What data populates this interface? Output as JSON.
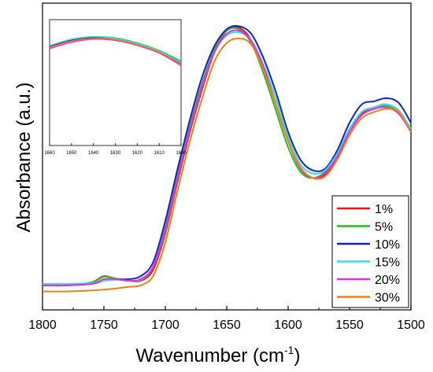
{
  "chart_data": [
    {
      "type": "line",
      "xlabel": "Wavenumber (cm",
      "xlabel_sup": "-1",
      "xlabel_close": ")",
      "ylabel": "Absorbance (a.u.)",
      "xlim": [
        1800,
        1500
      ],
      "ylim": [
        0,
        1
      ],
      "x_ticks": [
        "1800",
        "1750",
        "1700",
        "1650",
        "1600",
        "1550",
        "1500"
      ],
      "y_ticks_labeled": false,
      "grid": false,
      "legend_position": "bottom-right",
      "series": [
        {
          "name": "1%",
          "color": "#e8141b",
          "points": [
            [
              1800,
              0.08
            ],
            [
              1780,
              0.08
            ],
            [
              1760,
              0.09
            ],
            [
              1750,
              0.11
            ],
            [
              1740,
              0.1
            ],
            [
              1730,
              0.095
            ],
            [
              1720,
              0.095
            ],
            [
              1710,
              0.13
            ],
            [
              1700,
              0.25
            ],
            [
              1690,
              0.42
            ],
            [
              1680,
              0.58
            ],
            [
              1670,
              0.72
            ],
            [
              1660,
              0.84
            ],
            [
              1650,
              0.91
            ],
            [
              1640,
              0.92
            ],
            [
              1630,
              0.88
            ],
            [
              1620,
              0.79
            ],
            [
              1610,
              0.67
            ],
            [
              1600,
              0.55
            ],
            [
              1590,
              0.46
            ],
            [
              1580,
              0.43
            ],
            [
              1570,
              0.44
            ],
            [
              1560,
              0.5
            ],
            [
              1550,
              0.58
            ],
            [
              1540,
              0.64
            ],
            [
              1530,
              0.66
            ],
            [
              1520,
              0.67
            ],
            [
              1510,
              0.65
            ],
            [
              1500,
              0.59
            ]
          ]
        },
        {
          "name": "5%",
          "color": "#22c11c",
          "points": [
            [
              1800,
              0.08
            ],
            [
              1780,
              0.08
            ],
            [
              1760,
              0.09
            ],
            [
              1750,
              0.108
            ],
            [
              1740,
              0.102
            ],
            [
              1730,
              0.095
            ],
            [
              1720,
              0.098
            ],
            [
              1710,
              0.14
            ],
            [
              1700,
              0.27
            ],
            [
              1690,
              0.44
            ],
            [
              1680,
              0.6
            ],
            [
              1670,
              0.74
            ],
            [
              1660,
              0.85
            ],
            [
              1650,
              0.91
            ],
            [
              1640,
              0.915
            ],
            [
              1630,
              0.87
            ],
            [
              1620,
              0.77
            ],
            [
              1610,
              0.65
            ],
            [
              1600,
              0.53
            ],
            [
              1590,
              0.45
            ],
            [
              1580,
              0.43
            ],
            [
              1570,
              0.45
            ],
            [
              1560,
              0.51
            ],
            [
              1550,
              0.59
            ],
            [
              1540,
              0.645
            ],
            [
              1530,
              0.66
            ],
            [
              1520,
              0.665
            ],
            [
              1510,
              0.645
            ],
            [
              1500,
              0.58
            ]
          ]
        },
        {
          "name": "10%",
          "color": "#1423c8",
          "points": [
            [
              1800,
              0.08
            ],
            [
              1780,
              0.08
            ],
            [
              1760,
              0.085
            ],
            [
              1750,
              0.095
            ],
            [
              1740,
              0.1
            ],
            [
              1730,
              0.1
            ],
            [
              1720,
              0.11
            ],
            [
              1710,
              0.155
            ],
            [
              1700,
              0.29
            ],
            [
              1690,
              0.46
            ],
            [
              1680,
              0.62
            ],
            [
              1670,
              0.76
            ],
            [
              1660,
              0.86
            ],
            [
              1650,
              0.915
            ],
            [
              1640,
              0.925
            ],
            [
              1630,
              0.9
            ],
            [
              1620,
              0.82
            ],
            [
              1610,
              0.71
            ],
            [
              1600,
              0.58
            ],
            [
              1590,
              0.49
            ],
            [
              1580,
              0.455
            ],
            [
              1570,
              0.46
            ],
            [
              1560,
              0.52
            ],
            [
              1550,
              0.61
            ],
            [
              1540,
              0.67
            ],
            [
              1530,
              0.68
            ],
            [
              1520,
              0.69
            ],
            [
              1510,
              0.675
            ],
            [
              1500,
              0.61
            ]
          ]
        },
        {
          "name": "15%",
          "color": "#3bdce8",
          "points": [
            [
              1800,
              0.085
            ],
            [
              1780,
              0.085
            ],
            [
              1760,
              0.088
            ],
            [
              1750,
              0.095
            ],
            [
              1740,
              0.098
            ],
            [
              1730,
              0.095
            ],
            [
              1720,
              0.098
            ],
            [
              1710,
              0.14
            ],
            [
              1700,
              0.26
            ],
            [
              1690,
              0.43
            ],
            [
              1680,
              0.59
            ],
            [
              1670,
              0.73
            ],
            [
              1660,
              0.84
            ],
            [
              1650,
              0.895
            ],
            [
              1640,
              0.905
            ],
            [
              1630,
              0.88
            ],
            [
              1620,
              0.8
            ],
            [
              1610,
              0.69
            ],
            [
              1600,
              0.565
            ],
            [
              1590,
              0.475
            ],
            [
              1580,
              0.445
            ],
            [
              1570,
              0.455
            ],
            [
              1560,
              0.51
            ],
            [
              1550,
              0.59
            ],
            [
              1540,
              0.645
            ],
            [
              1530,
              0.66
            ],
            [
              1520,
              0.67
            ],
            [
              1510,
              0.65
            ],
            [
              1500,
              0.59
            ]
          ]
        },
        {
          "name": "20%",
          "color": "#e42ee0",
          "points": [
            [
              1800,
              0.08
            ],
            [
              1780,
              0.08
            ],
            [
              1760,
              0.085
            ],
            [
              1750,
              0.1
            ],
            [
              1740,
              0.1
            ],
            [
              1730,
              0.095
            ],
            [
              1720,
              0.1
            ],
            [
              1710,
              0.14
            ],
            [
              1700,
              0.26
            ],
            [
              1690,
              0.43
            ],
            [
              1680,
              0.59
            ],
            [
              1670,
              0.73
            ],
            [
              1660,
              0.84
            ],
            [
              1650,
              0.9
            ],
            [
              1640,
              0.91
            ],
            [
              1630,
              0.875
            ],
            [
              1620,
              0.79
            ],
            [
              1610,
              0.67
            ],
            [
              1600,
              0.55
            ],
            [
              1590,
              0.46
            ],
            [
              1580,
              0.43
            ],
            [
              1570,
              0.445
            ],
            [
              1560,
              0.5
            ],
            [
              1550,
              0.58
            ],
            [
              1540,
              0.635
            ],
            [
              1530,
              0.655
            ],
            [
              1520,
              0.66
            ],
            [
              1510,
              0.64
            ],
            [
              1500,
              0.58
            ]
          ]
        },
        {
          "name": "30%",
          "color": "#f07f13",
          "points": [
            [
              1800,
              0.06
            ],
            [
              1780,
              0.06
            ],
            [
              1760,
              0.063
            ],
            [
              1750,
              0.066
            ],
            [
              1740,
              0.07
            ],
            [
              1730,
              0.075
            ],
            [
              1720,
              0.08
            ],
            [
              1710,
              0.11
            ],
            [
              1700,
              0.22
            ],
            [
              1690,
              0.39
            ],
            [
              1680,
              0.55
            ],
            [
              1670,
              0.69
            ],
            [
              1660,
              0.81
            ],
            [
              1650,
              0.87
            ],
            [
              1640,
              0.885
            ],
            [
              1630,
              0.865
            ],
            [
              1620,
              0.78
            ],
            [
              1610,
              0.67
            ],
            [
              1600,
              0.55
            ],
            [
              1590,
              0.465
            ],
            [
              1580,
              0.43
            ],
            [
              1570,
              0.435
            ],
            [
              1560,
              0.49
            ],
            [
              1550,
              0.57
            ],
            [
              1540,
              0.625
            ],
            [
              1530,
              0.645
            ],
            [
              1520,
              0.655
            ],
            [
              1510,
              0.645
            ],
            [
              1500,
              0.58
            ]
          ]
        }
      ]
    },
    {
      "type": "line",
      "role": "inset",
      "xlim": [
        1660,
        1600
      ],
      "ylim": [
        0,
        1
      ],
      "x_ticks": [
        "1660",
        "1650",
        "1640",
        "1630",
        "1620",
        "1610",
        "1600"
      ],
      "series": [
        {
          "name": "1%",
          "color": "#e8141b",
          "points": [
            [
              1660,
              0.78
            ],
            [
              1650,
              0.83
            ],
            [
              1640,
              0.85
            ],
            [
              1630,
              0.84
            ],
            [
              1620,
              0.8
            ],
            [
              1610,
              0.74
            ],
            [
              1600,
              0.64
            ]
          ]
        },
        {
          "name": "5%",
          "color": "#22c11c",
          "points": [
            [
              1660,
              0.79
            ],
            [
              1650,
              0.84
            ],
            [
              1640,
              0.862
            ],
            [
              1630,
              0.855
            ],
            [
              1620,
              0.815
            ],
            [
              1610,
              0.755
            ],
            [
              1600,
              0.67
            ]
          ]
        },
        {
          "name": "10%",
          "color": "#1423c8",
          "points": [
            [
              1660,
              0.785
            ],
            [
              1650,
              0.835
            ],
            [
              1640,
              0.855
            ],
            [
              1630,
              0.845
            ],
            [
              1620,
              0.805
            ],
            [
              1610,
              0.745
            ],
            [
              1600,
              0.65
            ]
          ]
        },
        {
          "name": "15%",
          "color": "#3bdce8",
          "points": [
            [
              1660,
              0.795
            ],
            [
              1650,
              0.845
            ],
            [
              1640,
              0.865
            ],
            [
              1630,
              0.85
            ],
            [
              1620,
              0.81
            ],
            [
              1610,
              0.75
            ],
            [
              1600,
              0.66
            ]
          ]
        },
        {
          "name": "20%",
          "color": "#e42ee0",
          "points": [
            [
              1660,
              0.77
            ],
            [
              1650,
              0.82
            ],
            [
              1640,
              0.845
            ],
            [
              1630,
              0.835
            ],
            [
              1620,
              0.795
            ],
            [
              1610,
              0.735
            ],
            [
              1600,
              0.635
            ]
          ]
        },
        {
          "name": "30%",
          "color": "#f07f13",
          "points": [
            [
              1660,
              0.78
            ],
            [
              1650,
              0.83
            ],
            [
              1640,
              0.85
            ],
            [
              1630,
              0.842
            ],
            [
              1620,
              0.8
            ],
            [
              1610,
              0.742
            ],
            [
              1600,
              0.645
            ]
          ]
        }
      ]
    }
  ]
}
